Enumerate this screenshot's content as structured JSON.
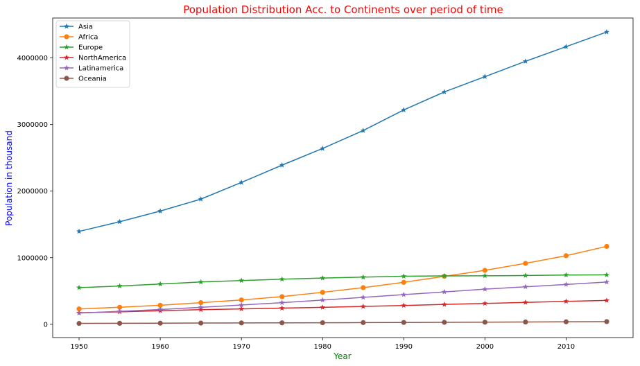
{
  "chart_data": {
    "type": "line",
    "title": "Population Distribution Acc. to Continents over period of time",
    "title_color": "#ff0000",
    "xlabel": "Year",
    "xlabel_color": "#008000",
    "ylabel": "Population in thousand",
    "ylabel_color": "#0000ff",
    "x": [
      1950,
      1955,
      1960,
      1965,
      1970,
      1975,
      1980,
      1985,
      1990,
      1995,
      2000,
      2005,
      2010,
      2015
    ],
    "xlim": [
      1946.75,
      2018.25
    ],
    "ylim": [
      -200000,
      4600000
    ],
    "xticks": [
      "1950",
      "1960",
      "1970",
      "1980",
      "1990",
      "2000",
      "2010"
    ],
    "yticks": [
      "0",
      "1000000",
      "2000000",
      "3000000",
      "4000000"
    ],
    "grid": false,
    "legend_position": "top-left",
    "series": [
      {
        "name": "Asia",
        "color": "#1f77b4",
        "marker": "star",
        "values": [
          1395000,
          1540000,
          1700000,
          1880000,
          2130000,
          2390000,
          2640000,
          2910000,
          3220000,
          3490000,
          3720000,
          3950000,
          4170000,
          4390000
        ]
      },
      {
        "name": "Africa",
        "color": "#ff7f0e",
        "marker": "circle",
        "values": [
          230000,
          255000,
          285000,
          325000,
          365000,
          415000,
          480000,
          550000,
          630000,
          720000,
          810000,
          915000,
          1030000,
          1170000
        ]
      },
      {
        "name": "Europe",
        "color": "#2ca02c",
        "marker": "star",
        "values": [
          550000,
          575000,
          605000,
          635000,
          657000,
          677000,
          694000,
          708000,
          721000,
          727000,
          728000,
          732000,
          740000,
          742000
        ]
      },
      {
        "name": "NorthAmerica",
        "color": "#d62728",
        "marker": "star",
        "values": [
          172000,
          187000,
          204000,
          219000,
          231000,
          242000,
          254000,
          268000,
          282000,
          298000,
          313000,
          329000,
          344000,
          358000
        ]
      },
      {
        "name": "Latinamerica",
        "color": "#9467bd",
        "marker": "star",
        "values": [
          168000,
          194000,
          222000,
          254000,
          289000,
          325000,
          364000,
          404000,
          445000,
          486000,
          527000,
          563000,
          598000,
          634000
        ]
      },
      {
        "name": "Oceania",
        "color": "#8c564b",
        "marker": "circle",
        "values": [
          13000,
          14500,
          16000,
          18000,
          20000,
          21500,
          23000,
          25000,
          27000,
          29000,
          31000,
          34000,
          37000,
          40000
        ]
      }
    ]
  }
}
